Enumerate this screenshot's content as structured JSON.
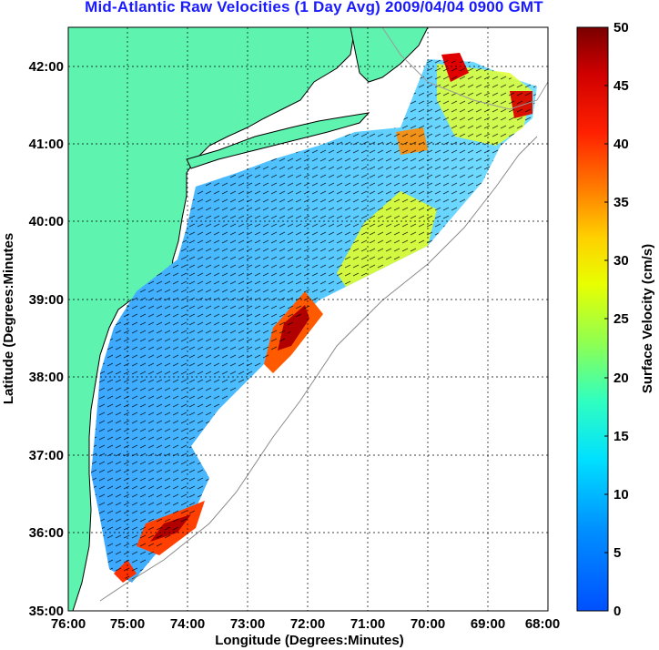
{
  "figure": {
    "title": "Mid-Atlantic Raw Velocities (1 Day Avg) 2009/04/04 0900 GMT",
    "title_color": "#1a1aff"
  },
  "map": {
    "xlabel": "Longitude (Degrees:Minutes)",
    "ylabel": "Latitude (Degrees:Minutes",
    "x_ticks": [
      "76:00",
      "75:00",
      "74:00",
      "73:00",
      "72:00",
      "71:00",
      "70:00",
      "69:00",
      "68:00"
    ],
    "y_ticks": [
      "42:00",
      "41:00",
      "40:00",
      "39:00",
      "38:00",
      "37:00",
      "36:00",
      "35:00"
    ],
    "land_color": "#5ef4b0",
    "ocean_color": "#ffffff"
  },
  "colorbar": {
    "label": "Surface Velocity (cm/s)",
    "ticks": [
      "50",
      "45",
      "40",
      "35",
      "30",
      "25",
      "20",
      "15",
      "10",
      "5",
      "0"
    ],
    "range": [
      0,
      50
    ],
    "colormap": "jet"
  }
}
